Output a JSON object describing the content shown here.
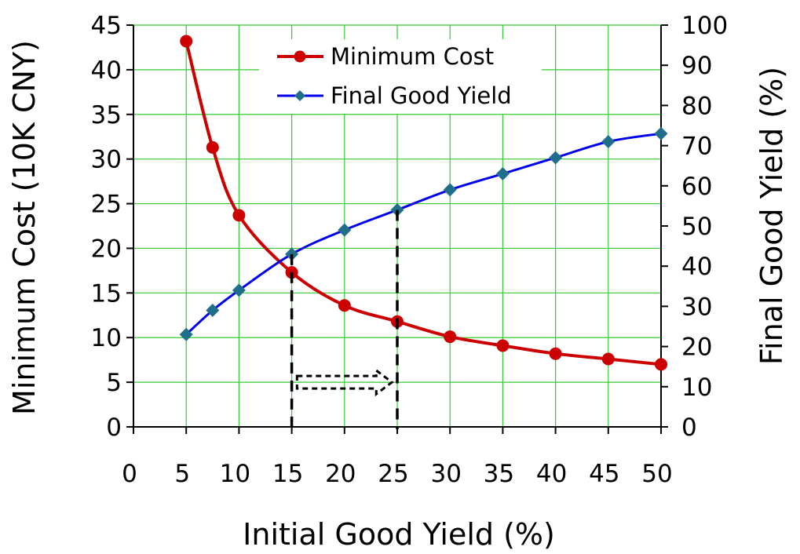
{
  "chart_data": {
    "type": "line",
    "xlabel": "Initial Good Yield (%)",
    "ylabel_left": "Minimum Cost (10K CNY)",
    "ylabel_right": "Final Good Yield (%)",
    "xlim": [
      0,
      50
    ],
    "ylim_left": [
      0,
      45
    ],
    "ylim_right": [
      0,
      100
    ],
    "x_ticks": [
      "0",
      "5",
      "10",
      "15",
      "20",
      "25",
      "30",
      "35",
      "40",
      "45",
      "50"
    ],
    "y_left_ticks": [
      "0",
      "5",
      "10",
      "15",
      "20",
      "25",
      "30",
      "35",
      "40",
      "45"
    ],
    "y_right_ticks": [
      "0",
      "10",
      "20",
      "30",
      "40",
      "50",
      "60",
      "70",
      "80",
      "90",
      "100"
    ],
    "grid": true,
    "legend_position": "top-center",
    "series": [
      {
        "name": "Minimum Cost",
        "axis": "left",
        "color": "#cc0000",
        "marker": "circle",
        "x": [
          5,
          7.5,
          10,
          15,
          20,
          25,
          30,
          35,
          40,
          45,
          50
        ],
        "y": [
          43.2,
          31.3,
          23.7,
          17.3,
          13.6,
          11.8,
          10.1,
          9.1,
          8.2,
          7.6,
          7.0
        ]
      },
      {
        "name": "Final Good Yield",
        "axis": "right",
        "color": "#0000ee",
        "marker_color": "#1f6f8b",
        "marker": "diamond",
        "x": [
          5,
          7.5,
          10,
          15,
          20,
          25,
          30,
          35,
          40,
          45,
          50
        ],
        "y": [
          23,
          29,
          34,
          43,
          49,
          54,
          59,
          63,
          67,
          71,
          73
        ]
      }
    ],
    "annotations": [
      {
        "type": "dashed-vertical-line",
        "x": 15,
        "to_series": "Final Good Yield"
      },
      {
        "type": "dashed-vertical-line",
        "x": 25,
        "to_series": "Final Good Yield"
      },
      {
        "type": "dashed-arrow",
        "from_x": 15.5,
        "to_x": 24.5,
        "y_left": 5
      }
    ]
  }
}
